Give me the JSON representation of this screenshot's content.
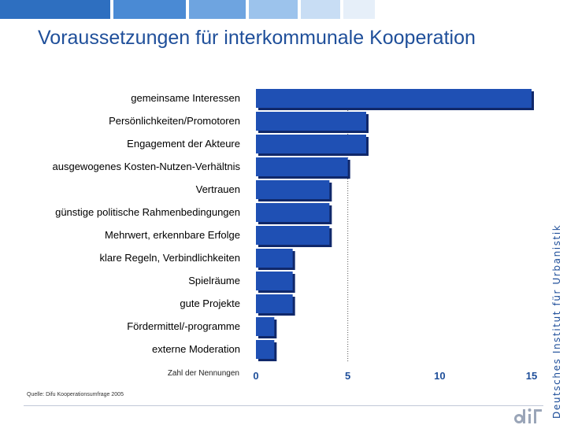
{
  "page": {
    "title": "Voraussetzungen für interkommunale Kooperation",
    "side_text": "Deutsches Institut für Urbanistik",
    "source": "Quelle: Difu Kooperationsumfrage 2005",
    "band_colors": [
      "#2e6fc0",
      "#4a8ad4",
      "#6ea4e0",
      "#9cc3ec",
      "#c8ddf4",
      "#e6eff9"
    ]
  },
  "chart_data": {
    "type": "bar",
    "orientation": "horizontal",
    "title": "Voraussetzungen für interkommunale Kooperation",
    "categories": [
      "gemeinsame Interessen",
      "Persönlichkeiten/Promotoren",
      "Engagement der Akteure",
      "ausgewogenes Kosten-Nutzen-Verhältnis",
      "Vertrauen",
      "günstige politische Rahmenbedingungen",
      "Mehrwert, erkennbare Erfolge",
      "klare Regeln, Verbindlichkeiten",
      "Spielräume",
      "gute Projekte",
      "Fördermittel/-programme",
      "externe Moderation"
    ],
    "values": [
      15,
      6,
      6,
      5,
      4,
      4,
      4,
      2,
      2,
      2,
      1,
      1
    ],
    "xlabel": "Zahl der Nennungen",
    "xlim": [
      0,
      15
    ],
    "xticks": [
      0,
      5,
      10,
      15
    ],
    "gridlines": [
      5
    ],
    "bar_color": "#1f50b4",
    "bar_shadow_color": "#10286a"
  }
}
